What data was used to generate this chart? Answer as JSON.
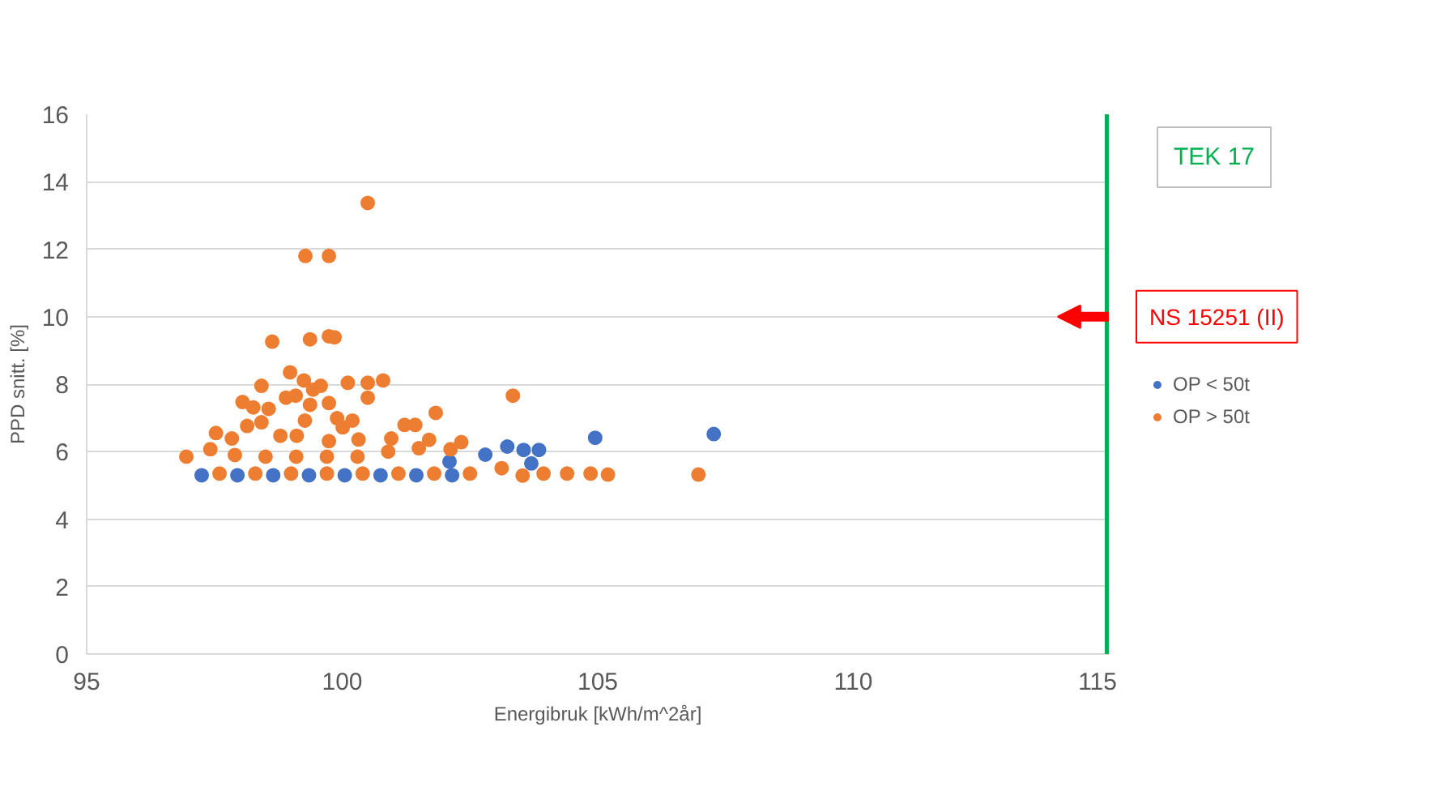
{
  "chart_data": {
    "type": "scatter",
    "xlabel": "Energibruk [kWh/m^2år]",
    "ylabel": "PPD snitt. [%]",
    "xlim": [
      95,
      115
    ],
    "xticks": [
      95,
      100,
      105,
      110,
      115
    ],
    "ylim": [
      0,
      16
    ],
    "yticks": [
      0,
      2,
      4,
      6,
      8,
      10,
      12,
      14,
      16
    ],
    "grid": "y",
    "legend": "right",
    "marker": "circle",
    "ref_lines": [
      {
        "axis": "x",
        "value": 115,
        "label": "TEK 17",
        "color": "#00b050"
      }
    ],
    "annotations": [
      {
        "text": "NS 15251 (II)",
        "x": 115,
        "y": 10
      }
    ],
    "series": [
      {
        "name": "OP < 50t",
        "color": "#4472c4",
        "x": [
          97.25,
          97.95,
          98.65,
          99.35,
          100.05,
          100.75,
          101.45,
          102.15,
          102.8,
          103.23,
          103.55,
          103.85,
          103.7,
          104.95,
          107.27,
          102.1
        ],
        "values": [
          5.3,
          5.3,
          5.3,
          5.3,
          5.3,
          5.3,
          5.3,
          5.3,
          5.91,
          6.15,
          6.05,
          6.05,
          5.65,
          6.41,
          6.52,
          5.7
        ]
      },
      {
        "name": "OP > 50t",
        "color": "#ed7d31",
        "x": [
          100.5,
          99.28,
          99.74,
          98.63,
          99.37,
          99.74,
          99.85,
          98.98,
          98.42,
          99.25,
          99.43,
          99.58,
          100.11,
          100.5,
          100.8,
          100.5,
          103.34,
          98.05,
          98.26,
          98.56,
          98.9,
          99.09,
          99.37,
          99.74,
          101.83,
          99.9,
          100.2,
          99.27,
          98.42,
          98.14,
          97.53,
          97.84,
          98.79,
          99.11,
          100.01,
          101.22,
          101.43,
          101.7,
          102.33,
          102.12,
          99.74,
          100.32,
          100.96,
          97.42,
          97.6,
          98.3,
          99.0,
          99.7,
          100.4,
          101.1,
          101.8,
          102.5,
          103.12,
          103.53,
          103.94,
          104.4,
          104.86,
          105.2,
          106.97,
          96.95,
          97.9,
          98.5,
          99.1,
          99.7,
          100.3,
          100.9,
          101.5
        ],
        "values": [
          13.37,
          11.8,
          11.8,
          9.26,
          9.33,
          9.42,
          9.39,
          8.35,
          7.95,
          8.11,
          7.84,
          7.95,
          8.04,
          8.04,
          8.11,
          7.6,
          7.66,
          7.47,
          7.31,
          7.27,
          7.6,
          7.66,
          7.39,
          7.44,
          7.15,
          6.99,
          6.92,
          6.92,
          6.87,
          6.76,
          6.55,
          6.39,
          6.47,
          6.47,
          6.72,
          6.79,
          6.79,
          6.35,
          6.28,
          6.07,
          6.31,
          6.36,
          6.39,
          6.07,
          5.35,
          5.35,
          5.35,
          5.35,
          5.35,
          5.35,
          5.35,
          5.35,
          5.51,
          5.29,
          5.35,
          5.35,
          5.35,
          5.32,
          5.32,
          5.85,
          5.9,
          5.85,
          5.85,
          5.85,
          5.85,
          6.0,
          6.1
        ]
      }
    ]
  }
}
